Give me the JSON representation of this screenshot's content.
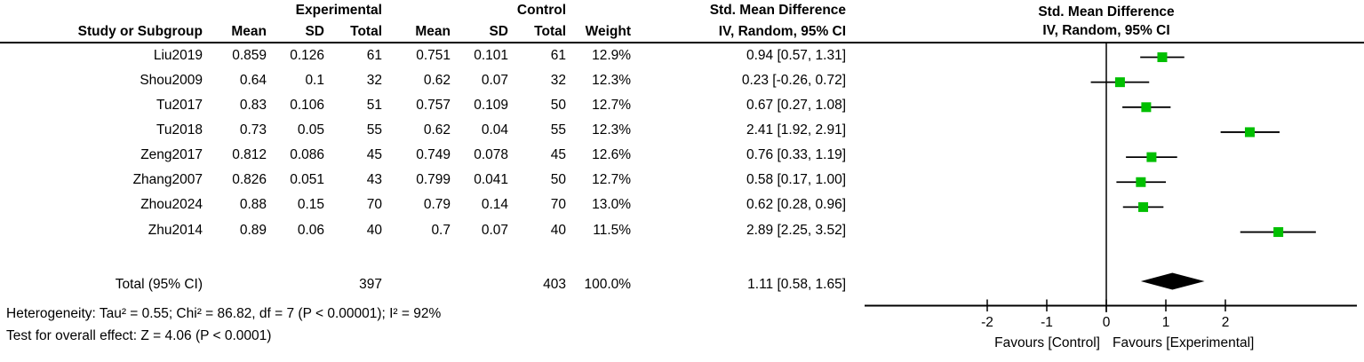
{
  "colors": {
    "marker_green": "#00bf00",
    "line": "#000000",
    "text": "#000000",
    "background": "#ffffff"
  },
  "table": {
    "headers": {
      "group_experimental": "Experimental",
      "group_control": "Control",
      "group_smd": "Std. Mean Difference",
      "study": "Study or Subgroup",
      "mean": "Mean",
      "sd": "SD",
      "total": "Total",
      "weight": "Weight",
      "iv_random": "IV, Random, 95% CI"
    },
    "total": {
      "label": "Total (95% CI)",
      "exp_total": "397",
      "ctl_total": "403",
      "weight": "100.0%",
      "ci_label": "1.11 [0.58, 1.65]"
    }
  },
  "studies": [
    {
      "name": "Liu2019",
      "exp_mean": "0.859",
      "exp_sd": "0.126",
      "exp_total": "61",
      "ctl_mean": "0.751",
      "ctl_sd": "0.101",
      "ctl_total": "61",
      "weight": "12.9%",
      "ci_label": "0.94 [0.57, 1.31]",
      "est": 0.94,
      "lo": 0.57,
      "hi": 1.31
    },
    {
      "name": "Shou2009",
      "exp_mean": "0.64",
      "exp_sd": "0.1",
      "exp_total": "32",
      "ctl_mean": "0.62",
      "ctl_sd": "0.07",
      "ctl_total": "32",
      "weight": "12.3%",
      "ci_label": "0.23 [-0.26, 0.72]",
      "est": 0.23,
      "lo": -0.26,
      "hi": 0.72
    },
    {
      "name": "Tu2017",
      "exp_mean": "0.83",
      "exp_sd": "0.106",
      "exp_total": "51",
      "ctl_mean": "0.757",
      "ctl_sd": "0.109",
      "ctl_total": "50",
      "weight": "12.7%",
      "ci_label": "0.67 [0.27, 1.08]",
      "est": 0.67,
      "lo": 0.27,
      "hi": 1.08
    },
    {
      "name": "Tu2018",
      "exp_mean": "0.73",
      "exp_sd": "0.05",
      "exp_total": "55",
      "ctl_mean": "0.62",
      "ctl_sd": "0.04",
      "ctl_total": "55",
      "weight": "12.3%",
      "ci_label": "2.41 [1.92, 2.91]",
      "est": 2.41,
      "lo": 1.92,
      "hi": 2.91
    },
    {
      "name": "Zeng2017",
      "exp_mean": "0.812",
      "exp_sd": "0.086",
      "exp_total": "45",
      "ctl_mean": "0.749",
      "ctl_sd": "0.078",
      "ctl_total": "45",
      "weight": "12.6%",
      "ci_label": "0.76 [0.33, 1.19]",
      "est": 0.76,
      "lo": 0.33,
      "hi": 1.19
    },
    {
      "name": "Zhang2007",
      "exp_mean": "0.826",
      "exp_sd": "0.051",
      "exp_total": "43",
      "ctl_mean": "0.799",
      "ctl_sd": "0.041",
      "ctl_total": "50",
      "weight": "12.7%",
      "ci_label": "0.58 [0.17, 1.00]",
      "est": 0.58,
      "lo": 0.17,
      "hi": 1.0
    },
    {
      "name": "Zhou2024",
      "exp_mean": "0.88",
      "exp_sd": "0.15",
      "exp_total": "70",
      "ctl_mean": "0.79",
      "ctl_sd": "0.14",
      "ctl_total": "70",
      "weight": "13.0%",
      "ci_label": "0.62 [0.28, 0.96]",
      "est": 0.62,
      "lo": 0.28,
      "hi": 0.96
    },
    {
      "name": "Zhu2014",
      "exp_mean": "0.89",
      "exp_sd": "0.06",
      "exp_total": "40",
      "ctl_mean": "0.7",
      "ctl_sd": "0.07",
      "ctl_total": "40",
      "weight": "11.5%",
      "ci_label": "2.89 [2.25, 3.52]",
      "est": 2.89,
      "lo": 2.25,
      "hi": 3.52
    }
  ],
  "footnotes": {
    "heterogeneity": "Heterogeneity: Tau² = 0.55; Chi² = 86.82, df = 7 (P < 0.00001); I² = 92%",
    "overall": "Test for overall effect: Z = 4.06 (P < 0.0001)"
  },
  "plot": {
    "header_line1": "Std. Mean Difference",
    "header_line2": "IV, Random, 95% CI",
    "axis": {
      "ticks": [
        {
          "value": -2,
          "label": "-2"
        },
        {
          "value": -1,
          "label": "-1"
        },
        {
          "value": 0,
          "label": "0"
        },
        {
          "value": 1,
          "label": "1"
        },
        {
          "value": 2,
          "label": "2"
        }
      ],
      "label_left": "Favours [Control]",
      "label_right": "Favours [Experimental]"
    },
    "summary": {
      "est": 1.11,
      "lo": 0.58,
      "hi": 1.65
    }
  },
  "chart_data": {
    "type": "scatter",
    "subtype": "forest_plot",
    "title": "Std. Mean Difference — IV, Random, 95% CI",
    "effect_measure": "Std. Mean Difference (IV, Random, 95% CI)",
    "x_axis": {
      "ticks": [
        -2,
        -1,
        0,
        1,
        2
      ],
      "range_shown": [
        -4.05,
        4.2
      ],
      "label_left": "Favours [Control]",
      "label_right": "Favours [Experimental]"
    },
    "studies": [
      {
        "name": "Liu2019",
        "experimental": {
          "mean": 0.859,
          "sd": 0.126,
          "total": 61
        },
        "control": {
          "mean": 0.751,
          "sd": 0.101,
          "total": 61
        },
        "weight_pct": 12.9,
        "estimate": 0.94,
        "ci": [
          0.57,
          1.31
        ]
      },
      {
        "name": "Shou2009",
        "experimental": {
          "mean": 0.64,
          "sd": 0.1,
          "total": 32
        },
        "control": {
          "mean": 0.62,
          "sd": 0.07,
          "total": 32
        },
        "weight_pct": 12.3,
        "estimate": 0.23,
        "ci": [
          -0.26,
          0.72
        ]
      },
      {
        "name": "Tu2017",
        "experimental": {
          "mean": 0.83,
          "sd": 0.106,
          "total": 51
        },
        "control": {
          "mean": 0.757,
          "sd": 0.109,
          "total": 50
        },
        "weight_pct": 12.7,
        "estimate": 0.67,
        "ci": [
          0.27,
          1.08
        ]
      },
      {
        "name": "Tu2018",
        "experimental": {
          "mean": 0.73,
          "sd": 0.05,
          "total": 55
        },
        "control": {
          "mean": 0.62,
          "sd": 0.04,
          "total": 55
        },
        "weight_pct": 12.3,
        "estimate": 2.41,
        "ci": [
          1.92,
          2.91
        ]
      },
      {
        "name": "Zeng2017",
        "experimental": {
          "mean": 0.812,
          "sd": 0.086,
          "total": 45
        },
        "control": {
          "mean": 0.749,
          "sd": 0.078,
          "total": 45
        },
        "weight_pct": 12.6,
        "estimate": 0.76,
        "ci": [
          0.33,
          1.19
        ]
      },
      {
        "name": "Zhang2007",
        "experimental": {
          "mean": 0.826,
          "sd": 0.051,
          "total": 43
        },
        "control": {
          "mean": 0.799,
          "sd": 0.041,
          "total": 50
        },
        "weight_pct": 12.7,
        "estimate": 0.58,
        "ci": [
          0.17,
          1.0
        ]
      },
      {
        "name": "Zhou2024",
        "experimental": {
          "mean": 0.88,
          "sd": 0.15,
          "total": 70
        },
        "control": {
          "mean": 0.79,
          "sd": 0.14,
          "total": 70
        },
        "weight_pct": 13.0,
        "estimate": 0.62,
        "ci": [
          0.28,
          0.96
        ]
      },
      {
        "name": "Zhu2014",
        "experimental": {
          "mean": 0.89,
          "sd": 0.06,
          "total": 40
        },
        "control": {
          "mean": 0.7,
          "sd": 0.07,
          "total": 40
        },
        "weight_pct": 11.5,
        "estimate": 2.89,
        "ci": [
          2.25,
          3.52
        ]
      }
    ],
    "summary": {
      "name": "Total (95% CI)",
      "experimental_total": 397,
      "control_total": 403,
      "weight_pct": 100.0,
      "estimate": 1.11,
      "ci": [
        0.58,
        1.65
      ]
    },
    "heterogeneity": {
      "tau2": 0.55,
      "chi2": 86.82,
      "df": 7,
      "p": "< 0.00001",
      "i2_pct": 92
    },
    "overall_effect": {
      "z": 4.06,
      "p": "< 0.0001"
    }
  }
}
